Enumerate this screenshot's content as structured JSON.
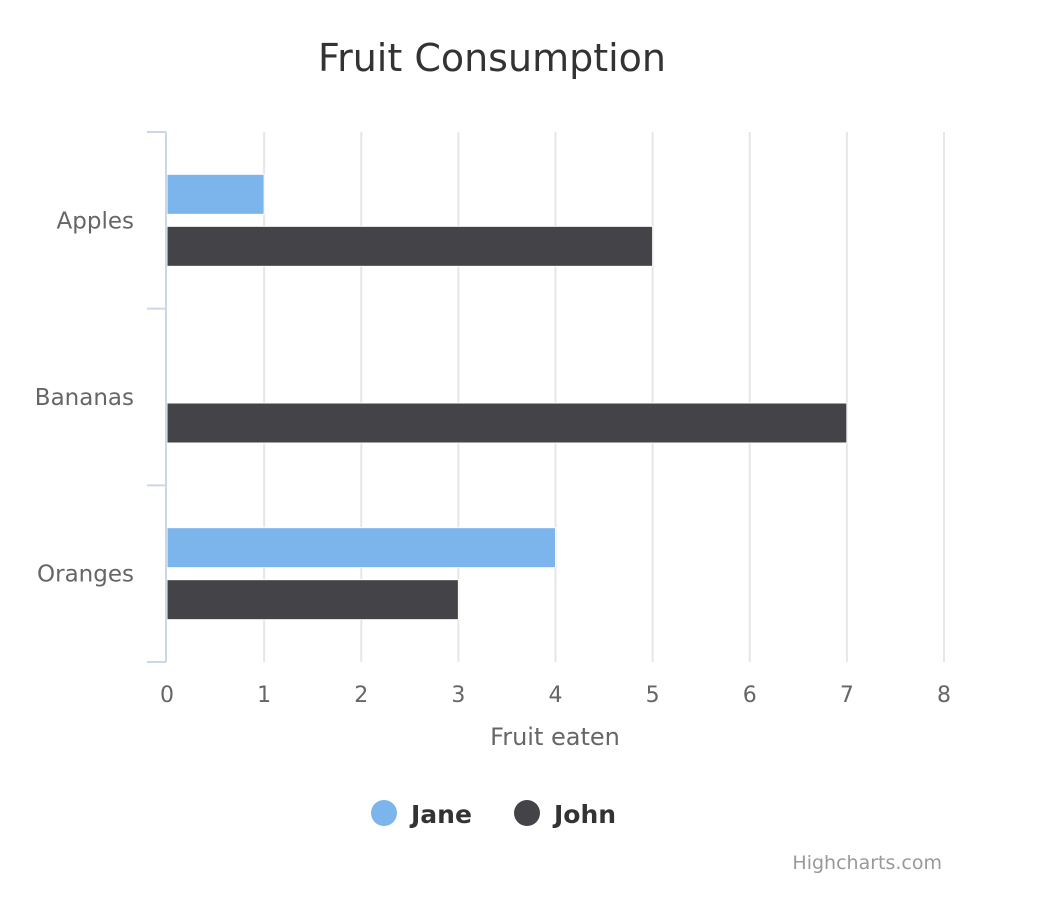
{
  "chart_data": {
    "type": "bar",
    "orientation": "horizontal",
    "title": "Fruit Consumption",
    "categories": [
      "Apples",
      "Bananas",
      "Oranges"
    ],
    "series": [
      {
        "name": "Jane",
        "values": [
          1,
          0,
          4
        ],
        "color": "#7cb5ec"
      },
      {
        "name": "John",
        "values": [
          5,
          7,
          3
        ],
        "color": "#434348"
      }
    ],
    "xlabel": "Fruit eaten",
    "ylabel": "",
    "xlim": [
      0,
      8
    ],
    "ticks": [
      "0",
      "1",
      "2",
      "3",
      "4",
      "5",
      "6",
      "7",
      "8"
    ],
    "grid": true,
    "legend": "bottom-center"
  },
  "credits": "Highcharts.com"
}
